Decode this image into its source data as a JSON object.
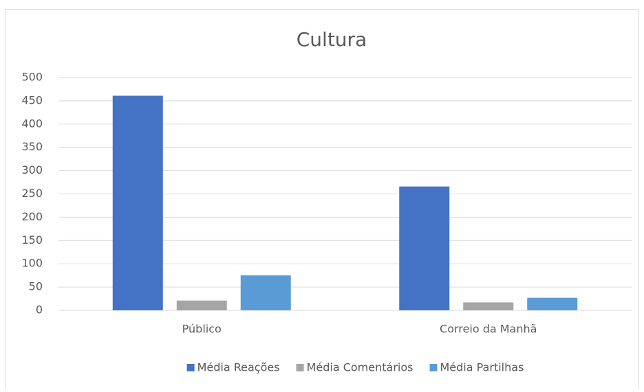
{
  "chart_data": {
    "type": "bar",
    "title": "Cultura",
    "categories": [
      "Público",
      "Correio da Manhã"
    ],
    "series": [
      {
        "name": "Média Reações",
        "color": "#4472c4",
        "values": [
          461,
          266
        ]
      },
      {
        "name": "Média Comentários",
        "color": "#a5a5a5",
        "values": [
          21,
          17
        ]
      },
      {
        "name": "Média Partilhas",
        "color": "#5b9bd5",
        "values": [
          75,
          27
        ]
      }
    ],
    "ylim": [
      0,
      500
    ],
    "yticks": [
      0,
      50,
      100,
      150,
      200,
      250,
      300,
      350,
      400,
      450,
      500
    ],
    "grid": true,
    "legend": "bottom"
  }
}
